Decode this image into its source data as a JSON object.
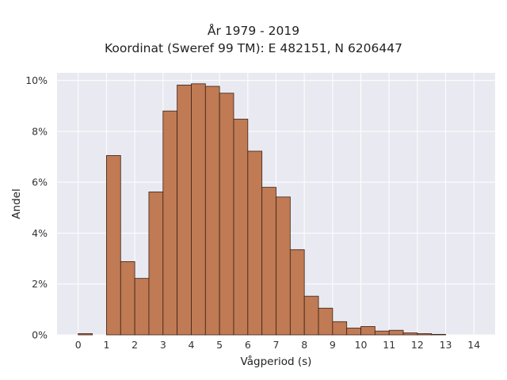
{
  "chart_data": {
    "type": "bar",
    "title": "År 1979 - 2019",
    "subtitle": "Koordinat (Sweref 99 TM): E 482151, N 6206447",
    "xlabel": "Vågperiod (s)",
    "ylabel": "Andel",
    "xlim": [
      -0.75,
      14.75
    ],
    "ylim": [
      0,
      10.3
    ],
    "x_ticks": [
      0,
      1,
      2,
      3,
      4,
      5,
      6,
      7,
      8,
      9,
      10,
      11,
      12,
      13,
      14
    ],
    "y_ticks": [
      0,
      2,
      4,
      6,
      8,
      10
    ],
    "y_tick_labels": [
      "0%",
      "2%",
      "4%",
      "6%",
      "8%",
      "10%"
    ],
    "bin_width": 0.5,
    "bins": [
      {
        "start": 0.0,
        "value": 0.05
      },
      {
        "start": 1.0,
        "value": 7.05
      },
      {
        "start": 1.5,
        "value": 2.88
      },
      {
        "start": 2.0,
        "value": 2.22
      },
      {
        "start": 2.5,
        "value": 5.62
      },
      {
        "start": 3.0,
        "value": 8.8
      },
      {
        "start": 3.5,
        "value": 9.82
      },
      {
        "start": 4.0,
        "value": 9.87
      },
      {
        "start": 4.5,
        "value": 9.77
      },
      {
        "start": 5.0,
        "value": 9.5
      },
      {
        "start": 5.5,
        "value": 8.48
      },
      {
        "start": 6.0,
        "value": 7.22
      },
      {
        "start": 6.5,
        "value": 5.8
      },
      {
        "start": 7.0,
        "value": 5.42
      },
      {
        "start": 7.5,
        "value": 3.35
      },
      {
        "start": 8.0,
        "value": 1.52
      },
      {
        "start": 8.5,
        "value": 1.05
      },
      {
        "start": 9.0,
        "value": 0.52
      },
      {
        "start": 9.5,
        "value": 0.27
      },
      {
        "start": 10.0,
        "value": 0.33
      },
      {
        "start": 10.5,
        "value": 0.15
      },
      {
        "start": 11.0,
        "value": 0.18
      },
      {
        "start": 11.5,
        "value": 0.08
      },
      {
        "start": 12.0,
        "value": 0.05
      },
      {
        "start": 12.5,
        "value": 0.02
      }
    ],
    "grid": true,
    "colors": {
      "bar_fill": "#c07a54",
      "bar_edge": "#3a2218",
      "plot_background": "#e9e9f1",
      "grid": "#ffffff"
    }
  }
}
